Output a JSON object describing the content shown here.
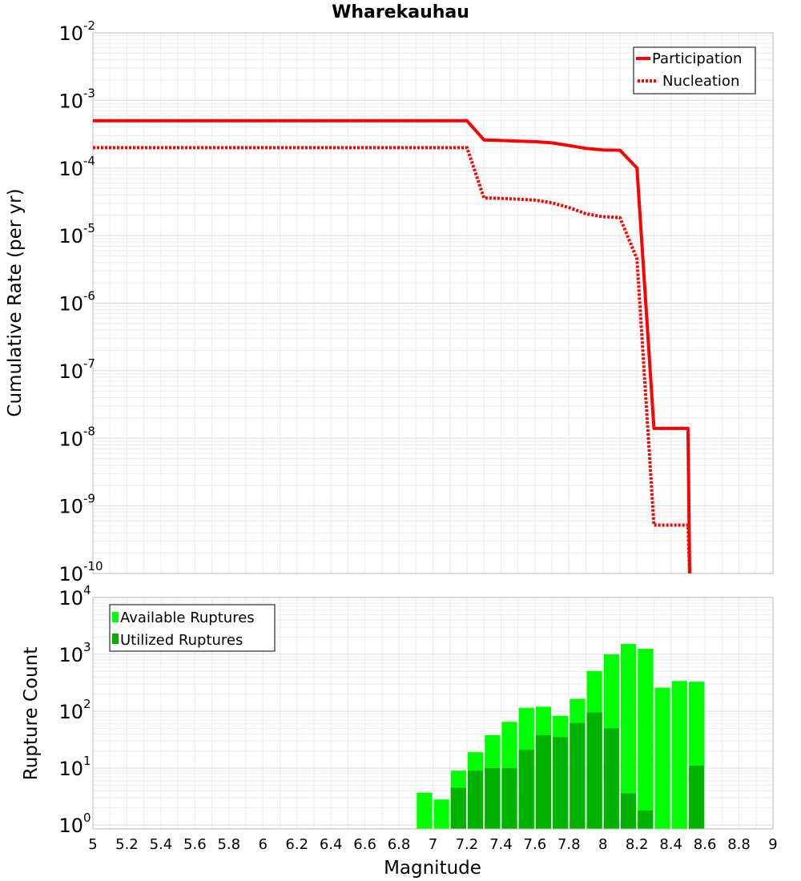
{
  "chart_data": [
    {
      "type": "line",
      "title": "Wharekauhau",
      "xlabel": "Magnitude",
      "ylabel": "Cumulative Rate (per yr)",
      "yscale": "log",
      "xlim": [
        5,
        9
      ],
      "ylim": [
        1e-10,
        0.01
      ],
      "ytick_bases": [
        "10",
        "10",
        "10",
        "10",
        "10",
        "10",
        "10",
        "10",
        "10"
      ],
      "ytick_exponents": [
        "-2",
        "-3",
        "-4",
        "-5",
        "-6",
        "-7",
        "-8",
        "-9",
        "-10"
      ],
      "legend_position": "top-right",
      "series": [
        {
          "name": "Participation",
          "style": "solid",
          "color": "#ff0000",
          "x": [
            5.0,
            7.2,
            7.3,
            7.4,
            7.5,
            7.6,
            7.7,
            7.8,
            7.9,
            8.0,
            8.1,
            8.2,
            8.3,
            8.4,
            8.5,
            8.51
          ],
          "y": [
            0.0005,
            0.0005,
            0.00026,
            0.000255,
            0.00025,
            0.000245,
            0.000235,
            0.000215,
            0.000195,
            0.000185,
            0.000183,
            0.0001,
            1.4e-08,
            1.4e-08,
            1.4e-08,
            1e-10
          ]
        },
        {
          "name": "Nucleation",
          "style": "dotted",
          "color": "#ff0000",
          "x": [
            5.0,
            7.2,
            7.3,
            7.4,
            7.5,
            7.6,
            7.7,
            7.8,
            7.9,
            8.0,
            8.1,
            8.2,
            8.3,
            8.4,
            8.5,
            8.51
          ],
          "y": [
            0.0002,
            0.0002,
            3.6e-05,
            3.55e-05,
            3.45e-05,
            3.35e-05,
            3.05e-05,
            2.6e-05,
            2.1e-05,
            1.9e-05,
            1.85e-05,
            4.5e-06,
            5.2e-10,
            5.2e-10,
            5.2e-10,
            1e-10
          ]
        }
      ]
    },
    {
      "type": "bar",
      "xlabel": "Magnitude",
      "ylabel": "Rupture Count",
      "yscale": "log",
      "xlim": [
        5,
        9
      ],
      "ylim": [
        0.85,
        10000
      ],
      "x_ticks": [
        "5",
        "5.2",
        "5.4",
        "5.6",
        "5.8",
        "6",
        "6.2",
        "6.4",
        "6.6",
        "6.8",
        "7",
        "7.2",
        "7.4",
        "7.6",
        "7.8",
        "8",
        "8.2",
        "8.4",
        "8.6",
        "8.8",
        "9"
      ],
      "ytick_bases": [
        "10",
        "10",
        "10",
        "10",
        "10"
      ],
      "ytick_exponents": [
        "4",
        "3",
        "2",
        "1",
        "0"
      ],
      "legend_position": "top-left",
      "bin_width": 0.1,
      "bin_centers": [
        6.95,
        7.05,
        7.15,
        7.25,
        7.35,
        7.45,
        7.55,
        7.65,
        7.75,
        7.85,
        7.95,
        8.05,
        8.15,
        8.25,
        8.35,
        8.45,
        8.55
      ],
      "series": [
        {
          "name": "Available Ruptures",
          "color": "#00ff00",
          "values": [
            3.7,
            2.8,
            9,
            19,
            38,
            65,
            115,
            120,
            83,
            165,
            510,
            1000,
            1520,
            1250,
            260,
            340,
            330
          ]
        },
        {
          "name": "Utilized Ruptures",
          "color": "#00b200",
          "values": [
            0,
            0,
            4.5,
            9,
            10,
            10,
            21,
            38,
            35,
            62,
            95,
            50,
            3.6,
            1.8,
            0,
            0,
            11
          ]
        }
      ]
    }
  ]
}
